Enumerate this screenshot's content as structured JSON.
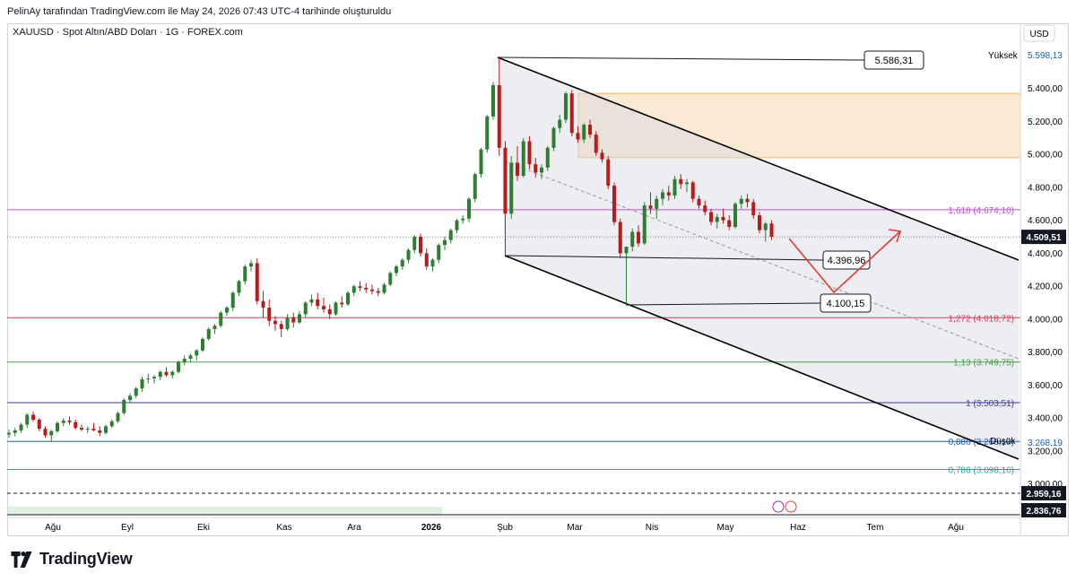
{
  "header": {
    "note": "PelinAy tarafından TradingView.com ile May 24, 2026 07:43 UTC-4 tarihinde oluşturuldu",
    "symbol": "XAUUSD · Spot Altın/ABD Doları · 1G · FOREX.com",
    "currency": "USD"
  },
  "footer": {
    "brand": "TradingView",
    "logo_icon": "tradingview-logo-icon"
  },
  "colors": {
    "up": "#2e7d32",
    "down": "#b71c1c",
    "fib_1618": "#c050d8",
    "fib_1272": "#e53957",
    "fib_113": "#43a047",
    "fib_1": "#3c3c9a",
    "fib_0886": "#1e5fb3",
    "fib_0786": "#26a69a",
    "supply_zone": "#f6d9b0",
    "red_arrow": "#e53935"
  },
  "chart_data": {
    "type": "candlestick",
    "y_axis": {
      "ticks": [
        "5.400,00",
        "5.200,00",
        "5.000,00",
        "4.800,00",
        "4.600,00",
        "4.400,00",
        "4.200,00",
        "4.000,00",
        "3.800,00",
        "3.600,00",
        "3.400,00",
        "3.200,00",
        "3.000,00"
      ],
      "ylim": [
        2800,
        5750
      ]
    },
    "x_axis": {
      "labels": [
        "Ağu",
        "Eyl",
        "Eki",
        "Kas",
        "Ara",
        "2026",
        "Şub",
        "Mar",
        "Nis",
        "May",
        "Haz",
        "Tem",
        "Ağu"
      ]
    },
    "high_label": "Yüksek",
    "high_value": "5.598,13",
    "low_label": "Düşük",
    "low_value": "3.268,19",
    "price_tags": [
      {
        "value": "4.509,51",
        "price": 4509.51
      },
      {
        "value": "2.959,16",
        "price": 2959.16
      },
      {
        "value": "2.836,76",
        "price": 2836.76
      }
    ],
    "fib_levels": [
      {
        "label": "1,618 (4.674,10)",
        "price": 4674.1,
        "color_key": "fib_1618"
      },
      {
        "label": "1,272 (4.018,72)",
        "price": 4018.72,
        "color_key": "fib_1272"
      },
      {
        "label": "1,13 (3.749,75)",
        "price": 3749.75,
        "color_key": "fib_113"
      },
      {
        "label": "1 (3.503,51)",
        "price": 3503.51,
        "color_key": "fib_1"
      },
      {
        "label": "0,886 (3.268,19)",
        "price": 3268.19,
        "color_key": "fib_0886"
      },
      {
        "label": "0,786 (3.098,16)",
        "price": 3098.16,
        "color_key": "fib_0786"
      }
    ],
    "callouts": [
      {
        "label": "5.586,31",
        "price": 5586.31
      },
      {
        "label": "4.396,96",
        "price": 4396.96
      },
      {
        "label": "4.100,15",
        "price": 4100.15
      }
    ],
    "supply_zone": {
      "top": 5380,
      "bottom": 4990
    },
    "series": [
      {
        "o": 3310,
        "h": 3340,
        "l": 3290,
        "c": 3320
      },
      {
        "o": 3320,
        "h": 3350,
        "l": 3300,
        "c": 3335
      },
      {
        "o": 3335,
        "h": 3380,
        "l": 3320,
        "c": 3370
      },
      {
        "o": 3370,
        "h": 3440,
        "l": 3350,
        "c": 3430
      },
      {
        "o": 3430,
        "h": 3450,
        "l": 3390,
        "c": 3400
      },
      {
        "o": 3400,
        "h": 3410,
        "l": 3330,
        "c": 3345
      },
      {
        "o": 3345,
        "h": 3360,
        "l": 3290,
        "c": 3305
      },
      {
        "o": 3305,
        "h": 3340,
        "l": 3268,
        "c": 3330
      },
      {
        "o": 3330,
        "h": 3390,
        "l": 3320,
        "c": 3380
      },
      {
        "o": 3380,
        "h": 3410,
        "l": 3360,
        "c": 3395
      },
      {
        "o": 3395,
        "h": 3420,
        "l": 3370,
        "c": 3385
      },
      {
        "o": 3385,
        "h": 3400,
        "l": 3340,
        "c": 3350
      },
      {
        "o": 3350,
        "h": 3370,
        "l": 3330,
        "c": 3340
      },
      {
        "o": 3340,
        "h": 3360,
        "l": 3320,
        "c": 3345
      },
      {
        "o": 3345,
        "h": 3380,
        "l": 3330,
        "c": 3335
      },
      {
        "o": 3335,
        "h": 3360,
        "l": 3300,
        "c": 3320
      },
      {
        "o": 3320,
        "h": 3370,
        "l": 3310,
        "c": 3360
      },
      {
        "o": 3360,
        "h": 3400,
        "l": 3350,
        "c": 3390
      },
      {
        "o": 3390,
        "h": 3450,
        "l": 3380,
        "c": 3440
      },
      {
        "o": 3440,
        "h": 3530,
        "l": 3430,
        "c": 3520
      },
      {
        "o": 3520,
        "h": 3560,
        "l": 3500,
        "c": 3545
      },
      {
        "o": 3545,
        "h": 3600,
        "l": 3530,
        "c": 3590
      },
      {
        "o": 3590,
        "h": 3660,
        "l": 3570,
        "c": 3645
      },
      {
        "o": 3645,
        "h": 3680,
        "l": 3620,
        "c": 3650
      },
      {
        "o": 3650,
        "h": 3670,
        "l": 3620,
        "c": 3660
      },
      {
        "o": 3660,
        "h": 3700,
        "l": 3640,
        "c": 3690
      },
      {
        "o": 3690,
        "h": 3720,
        "l": 3660,
        "c": 3670
      },
      {
        "o": 3670,
        "h": 3700,
        "l": 3650,
        "c": 3690
      },
      {
        "o": 3690,
        "h": 3760,
        "l": 3680,
        "c": 3750
      },
      {
        "o": 3750,
        "h": 3790,
        "l": 3730,
        "c": 3770
      },
      {
        "o": 3770,
        "h": 3800,
        "l": 3750,
        "c": 3790
      },
      {
        "o": 3790,
        "h": 3830,
        "l": 3760,
        "c": 3820
      },
      {
        "o": 3820,
        "h": 3900,
        "l": 3810,
        "c": 3890
      },
      {
        "o": 3890,
        "h": 3960,
        "l": 3880,
        "c": 3950
      },
      {
        "o": 3950,
        "h": 3980,
        "l": 3920,
        "c": 3970
      },
      {
        "o": 3970,
        "h": 4060,
        "l": 3960,
        "c": 4050
      },
      {
        "o": 4050,
        "h": 4090,
        "l": 4030,
        "c": 4080
      },
      {
        "o": 4080,
        "h": 4180,
        "l": 4060,
        "c": 4170
      },
      {
        "o": 4170,
        "h": 4250,
        "l": 4150,
        "c": 4240
      },
      {
        "o": 4240,
        "h": 4340,
        "l": 4220,
        "c": 4330
      },
      {
        "o": 4330,
        "h": 4370,
        "l": 4300,
        "c": 4350
      },
      {
        "o": 4350,
        "h": 4380,
        "l": 4100,
        "c": 4120
      },
      {
        "o": 4120,
        "h": 4180,
        "l": 4020,
        "c": 4080
      },
      {
        "o": 4080,
        "h": 4130,
        "l": 3970,
        "c": 4000
      },
      {
        "o": 4000,
        "h": 4030,
        "l": 3940,
        "c": 3980
      },
      {
        "o": 3980,
        "h": 4000,
        "l": 3900,
        "c": 3950
      },
      {
        "o": 3950,
        "h": 4040,
        "l": 3940,
        "c": 4020
      },
      {
        "o": 4020,
        "h": 4050,
        "l": 3960,
        "c": 3990
      },
      {
        "o": 3990,
        "h": 4060,
        "l": 3980,
        "c": 4040
      },
      {
        "o": 4040,
        "h": 4120,
        "l": 4020,
        "c": 4110
      },
      {
        "o": 4110,
        "h": 4160,
        "l": 4090,
        "c": 4130
      },
      {
        "o": 4130,
        "h": 4170,
        "l": 4070,
        "c": 4090
      },
      {
        "o": 4090,
        "h": 4140,
        "l": 4050,
        "c": 4070
      },
      {
        "o": 4070,
        "h": 4100,
        "l": 4010,
        "c": 4040
      },
      {
        "o": 4040,
        "h": 4120,
        "l": 4030,
        "c": 4110
      },
      {
        "o": 4110,
        "h": 4150,
        "l": 4080,
        "c": 4100
      },
      {
        "o": 4100,
        "h": 4180,
        "l": 4090,
        "c": 4170
      },
      {
        "o": 4170,
        "h": 4220,
        "l": 4150,
        "c": 4210
      },
      {
        "o": 4210,
        "h": 4240,
        "l": 4180,
        "c": 4200
      },
      {
        "o": 4200,
        "h": 4230,
        "l": 4170,
        "c": 4190
      },
      {
        "o": 4190,
        "h": 4220,
        "l": 4160,
        "c": 4180
      },
      {
        "o": 4180,
        "h": 4200,
        "l": 4150,
        "c": 4170
      },
      {
        "o": 4170,
        "h": 4230,
        "l": 4160,
        "c": 4220
      },
      {
        "o": 4220,
        "h": 4300,
        "l": 4210,
        "c": 4290
      },
      {
        "o": 4290,
        "h": 4340,
        "l": 4270,
        "c": 4330
      },
      {
        "o": 4330,
        "h": 4380,
        "l": 4310,
        "c": 4370
      },
      {
        "o": 4370,
        "h": 4440,
        "l": 4350,
        "c": 4430
      },
      {
        "o": 4430,
        "h": 4520,
        "l": 4410,
        "c": 4510
      },
      {
        "o": 4510,
        "h": 4530,
        "l": 4390,
        "c": 4410
      },
      {
        "o": 4410,
        "h": 4440,
        "l": 4310,
        "c": 4330
      },
      {
        "o": 4330,
        "h": 4380,
        "l": 4300,
        "c": 4370
      },
      {
        "o": 4370,
        "h": 4470,
        "l": 4350,
        "c": 4460
      },
      {
        "o": 4460,
        "h": 4510,
        "l": 4430,
        "c": 4490
      },
      {
        "o": 4490,
        "h": 4560,
        "l": 4470,
        "c": 4550
      },
      {
        "o": 4550,
        "h": 4620,
        "l": 4530,
        "c": 4610
      },
      {
        "o": 4610,
        "h": 4640,
        "l": 4590,
        "c": 4620
      },
      {
        "o": 4620,
        "h": 4750,
        "l": 4600,
        "c": 4740
      },
      {
        "o": 4740,
        "h": 4900,
        "l": 4720,
        "c": 4890
      },
      {
        "o": 4890,
        "h": 5050,
        "l": 4870,
        "c": 5040
      },
      {
        "o": 5040,
        "h": 5250,
        "l": 5020,
        "c": 5240
      },
      {
        "o": 5240,
        "h": 5450,
        "l": 5220,
        "c": 5430
      },
      {
        "o": 5430,
        "h": 5598,
        "l": 5000,
        "c": 5050
      },
      {
        "o": 5050,
        "h": 5090,
        "l": 4400,
        "c": 4650
      },
      {
        "o": 4650,
        "h": 5000,
        "l": 4620,
        "c": 4960
      },
      {
        "o": 4960,
        "h": 5060,
        "l": 4850,
        "c": 4880
      },
      {
        "o": 4880,
        "h": 5110,
        "l": 4870,
        "c": 5090
      },
      {
        "o": 5090,
        "h": 5120,
        "l": 4920,
        "c": 4950
      },
      {
        "o": 4950,
        "h": 4990,
        "l": 4870,
        "c": 4900
      },
      {
        "o": 4900,
        "h": 4950,
        "l": 4860,
        "c": 4930
      },
      {
        "o": 4930,
        "h": 5060,
        "l": 4910,
        "c": 5050
      },
      {
        "o": 5050,
        "h": 5180,
        "l": 5030,
        "c": 5170
      },
      {
        "o": 5170,
        "h": 5250,
        "l": 5140,
        "c": 5220
      },
      {
        "o": 5220,
        "h": 5390,
        "l": 5200,
        "c": 5380
      },
      {
        "o": 5380,
        "h": 5400,
        "l": 5120,
        "c": 5140
      },
      {
        "o": 5140,
        "h": 5180,
        "l": 5080,
        "c": 5100
      },
      {
        "o": 5100,
        "h": 5200,
        "l": 5080,
        "c": 5190
      },
      {
        "o": 5190,
        "h": 5220,
        "l": 5110,
        "c": 5130
      },
      {
        "o": 5130,
        "h": 5150,
        "l": 5000,
        "c": 5020
      },
      {
        "o": 5020,
        "h": 5040,
        "l": 4960,
        "c": 4980
      },
      {
        "o": 4980,
        "h": 5000,
        "l": 4800,
        "c": 4820
      },
      {
        "o": 4820,
        "h": 4840,
        "l": 4580,
        "c": 4600
      },
      {
        "o": 4600,
        "h": 4620,
        "l": 4380,
        "c": 4410
      },
      {
        "o": 4410,
        "h": 4430,
        "l": 4100,
        "c": 4450
      },
      {
        "o": 4450,
        "h": 4560,
        "l": 4420,
        "c": 4540
      },
      {
        "o": 4540,
        "h": 4580,
        "l": 4450,
        "c": 4470
      },
      {
        "o": 4470,
        "h": 4720,
        "l": 4460,
        "c": 4700
      },
      {
        "o": 4700,
        "h": 4780,
        "l": 4650,
        "c": 4680
      },
      {
        "o": 4680,
        "h": 4760,
        "l": 4620,
        "c": 4740
      },
      {
        "o": 4740,
        "h": 4800,
        "l": 4700,
        "c": 4780
      },
      {
        "o": 4780,
        "h": 4820,
        "l": 4730,
        "c": 4760
      },
      {
        "o": 4760,
        "h": 4880,
        "l": 4740,
        "c": 4860
      },
      {
        "o": 4860,
        "h": 4890,
        "l": 4800,
        "c": 4830
      },
      {
        "o": 4830,
        "h": 4860,
        "l": 4780,
        "c": 4840
      },
      {
        "o": 4840,
        "h": 4850,
        "l": 4720,
        "c": 4740
      },
      {
        "o": 4740,
        "h": 4760,
        "l": 4680,
        "c": 4700
      },
      {
        "o": 4700,
        "h": 4730,
        "l": 4640,
        "c": 4660
      },
      {
        "o": 4660,
        "h": 4680,
        "l": 4580,
        "c": 4600
      },
      {
        "o": 4600,
        "h": 4650,
        "l": 4560,
        "c": 4630
      },
      {
        "o": 4630,
        "h": 4680,
        "l": 4590,
        "c": 4610
      },
      {
        "o": 4610,
        "h": 4640,
        "l": 4550,
        "c": 4570
      },
      {
        "o": 4570,
        "h": 4720,
        "l": 4560,
        "c": 4710
      },
      {
        "o": 4710,
        "h": 4760,
        "l": 4680,
        "c": 4740
      },
      {
        "o": 4740,
        "h": 4770,
        "l": 4690,
        "c": 4720
      },
      {
        "o": 4720,
        "h": 4740,
        "l": 4620,
        "c": 4640
      },
      {
        "o": 4640,
        "h": 4660,
        "l": 4530,
        "c": 4550
      },
      {
        "o": 4550,
        "h": 4600,
        "l": 4480,
        "c": 4590
      },
      {
        "o": 4590,
        "h": 4610,
        "l": 4490,
        "c": 4509.51
      }
    ]
  }
}
